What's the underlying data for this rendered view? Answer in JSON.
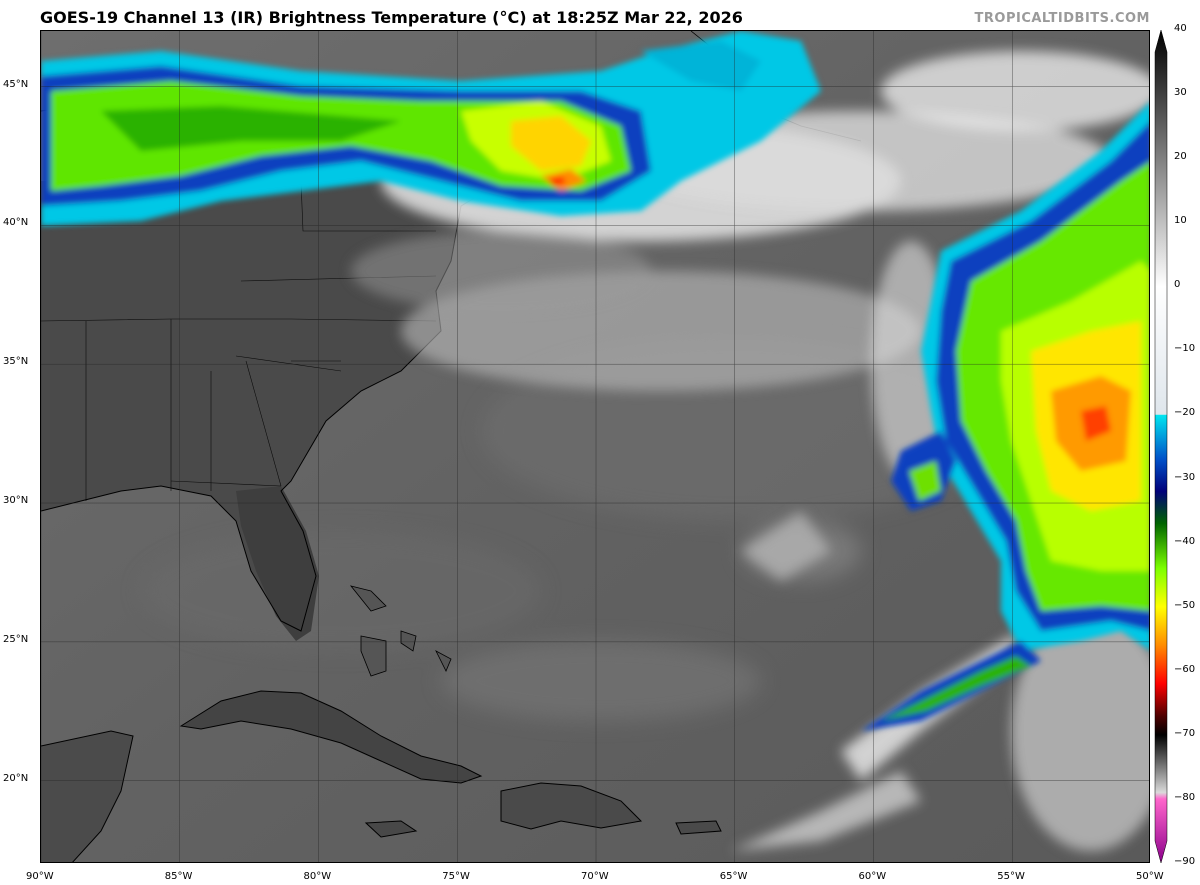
{
  "header": {
    "title": "GOES-19 Channel 13 (IR) Brightness Temperature (°C) at 18:25Z Mar 22, 2026",
    "credit": "TROPICALTIDBITS.COM"
  },
  "map": {
    "lon_range": [
      -90,
      -50
    ],
    "lat_range": [
      17,
      47
    ],
    "lon_ticks": [
      "90°W",
      "85°W",
      "80°W",
      "75°W",
      "70°W",
      "65°W",
      "60°W",
      "55°W",
      "50°W"
    ],
    "lat_ticks": [
      "20°N",
      "25°N",
      "30°N",
      "35°N",
      "40°N",
      "45°N"
    ],
    "graticule": true
  },
  "colorbar": {
    "labels": [
      "40",
      "30",
      "20",
      "10",
      "0",
      "−10",
      "−20",
      "−30",
      "−40",
      "−50",
      "−60",
      "−70",
      "−80",
      "−90"
    ],
    "range": [
      -90,
      40
    ],
    "stops": [
      {
        "t": 40,
        "color": "#000000"
      },
      {
        "t": 0,
        "color": "#ffffff"
      },
      {
        "t": -20,
        "color": "#dfe6ec"
      },
      {
        "t": -20.1,
        "color": "#00e5f0"
      },
      {
        "t": -27,
        "color": "#0050c8"
      },
      {
        "t": -32,
        "color": "#00007a"
      },
      {
        "t": -37,
        "color": "#006400"
      },
      {
        "t": -44,
        "color": "#7cff00"
      },
      {
        "t": -50,
        "color": "#ffff00"
      },
      {
        "t": -56,
        "color": "#ff8c00"
      },
      {
        "t": -62,
        "color": "#ff0000"
      },
      {
        "t": -67,
        "color": "#500000"
      },
      {
        "t": -70,
        "color": "#000000"
      },
      {
        "t": -79,
        "color": "#dadada"
      },
      {
        "t": -80,
        "color": "#ff66cc"
      },
      {
        "t": -90,
        "color": "#8b008b"
      }
    ]
  }
}
